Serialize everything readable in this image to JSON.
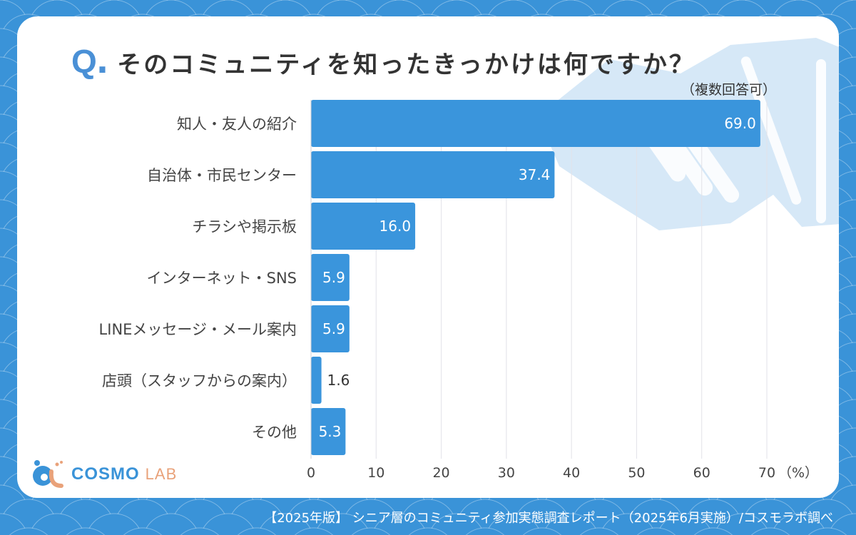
{
  "header": {
    "q_mark": "Q",
    "q_dot": ".",
    "title": "そのコミュニティを知ったきっかけは何ですか？",
    "note": "（複数回答可）"
  },
  "logo": {
    "name_a": "COSMO",
    "name_b": "LAB"
  },
  "footer": {
    "source": "【2025年版】 シニア層のコミュニティ参加実態調査レポート（2025年6月実施）/コスモラボ調べ"
  },
  "colors": {
    "background": "#3a93d8",
    "bar": "#3a95dc",
    "accent": "#4a90d6",
    "watermark": "#d6e8f7",
    "logo_orange": "#e9a27a"
  },
  "chart_data": {
    "type": "bar",
    "orientation": "horizontal",
    "title": "そのコミュニティを知ったきっかけは何ですか？",
    "subtitle": "（複数回答可）",
    "categories": [
      "知人・友人の紹介",
      "自治体・市民センター",
      "チラシや掲示板",
      "インターネット・SNS",
      "LINEメッセージ・メール案内",
      "店頭（スタッフからの案内）",
      "その他"
    ],
    "values": [
      69.0,
      37.4,
      16.0,
      5.9,
      5.9,
      1.6,
      5.3
    ],
    "value_labels": [
      "69.0",
      "37.4",
      "16.0",
      "5.9",
      "5.9",
      "1.6",
      "5.3"
    ],
    "xlabel": "（%）",
    "ylabel": "",
    "xlim": [
      0,
      70
    ],
    "xticks": [
      0,
      10,
      20,
      30,
      40,
      50,
      60,
      70
    ],
    "xtick_labels": [
      "0",
      "10",
      "20",
      "30",
      "40",
      "50",
      "60",
      "70"
    ],
    "grid": true,
    "legend": "none"
  }
}
